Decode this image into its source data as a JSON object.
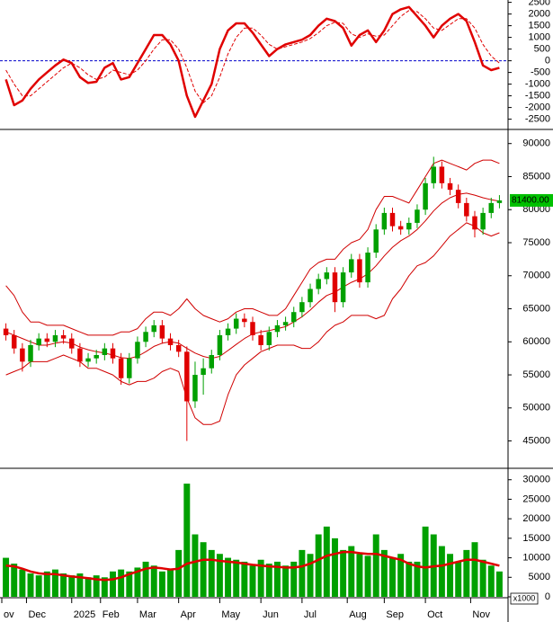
{
  "chart_data": [
    {
      "type": "line",
      "ylim": [
        -2900,
        2600
      ],
      "yticks": [
        2500,
        2000,
        1500,
        1000,
        500,
        0,
        -500,
        -1000,
        -1500,
        -2000,
        -2500
      ],
      "zero_line": 0,
      "zero_line_color": "#0000cc",
      "series": [
        {
          "color": "#e00000",
          "style": "solid",
          "values": [
            -800,
            -1900,
            -1700,
            -1200,
            -800,
            -500,
            -200,
            50,
            -100,
            -700,
            -950,
            -900,
            -300,
            -100,
            -800,
            -700,
            -100,
            500,
            1100,
            1100,
            700,
            0,
            -1500,
            -2400,
            -1700,
            -1000,
            500,
            1300,
            1600,
            1600,
            1200,
            700,
            200,
            500,
            700,
            800,
            900,
            1100,
            1500,
            1800,
            1700,
            1400,
            650,
            1100,
            1300,
            800,
            1300,
            2000,
            2200,
            2300,
            1900,
            1500,
            1000,
            1500,
            1800,
            2000,
            1700,
            800,
            -200,
            -400,
            -300
          ]
        },
        {
          "color": "#e00000",
          "style": "dashed",
          "values": [
            -400,
            -1000,
            -1500,
            -1500,
            -1200,
            -900,
            -600,
            -300,
            -100,
            -300,
            -600,
            -800,
            -700,
            -400,
            -500,
            -600,
            -400,
            0,
            500,
            900,
            900,
            500,
            -300,
            -1300,
            -1800,
            -1500,
            -700,
            300,
            1000,
            1400,
            1400,
            1100,
            700,
            500,
            600,
            700,
            800,
            950,
            1200,
            1500,
            1650,
            1600,
            1150,
            1000,
            1150,
            1050,
            1100,
            1500,
            1900,
            2150,
            2100,
            1800,
            1400,
            1300,
            1550,
            1800,
            1800,
            1400,
            700,
            200,
            -100
          ]
        }
      ]
    },
    {
      "type": "candlestick",
      "ylim": [
        41000,
        92000
      ],
      "yticks": [
        90000,
        85000,
        80000,
        75000,
        70000,
        65000,
        60000,
        55000,
        50000,
        45000
      ],
      "up_color": "#00a000",
      "down_color": "#e00000",
      "band_color": "#d00000",
      "last_price": {
        "value": 81400,
        "label": "81400.00"
      },
      "last_price_color": "#00c000",
      "open": [
        62000,
        61000,
        59000,
        57000,
        59500,
        60500,
        60000,
        61000,
        60500,
        59000,
        57000,
        57500,
        58000,
        59000,
        57500,
        54500,
        57500,
        60000,
        61500,
        62500,
        60500,
        59500,
        58500,
        51000,
        55000,
        56000,
        58000,
        61000,
        62000,
        63500,
        63000,
        61000,
        59500,
        61500,
        62500,
        63000,
        64500,
        66000,
        68000,
        69500,
        70500,
        66000,
        70500,
        72500,
        69000,
        73500,
        77000,
        79500,
        77500,
        77000,
        78000,
        80000,
        84000,
        86500,
        84000,
        83000,
        81000,
        79000,
        77000,
        79500,
        81000
      ],
      "high": [
        62800,
        61800,
        59800,
        60300,
        61300,
        61300,
        61800,
        61800,
        61300,
        59800,
        58300,
        58800,
        59800,
        59800,
        58300,
        58300,
        60800,
        62300,
        63300,
        63300,
        61300,
        60300,
        59300,
        57000,
        57500,
        58800,
        61800,
        62800,
        64300,
        64300,
        63800,
        61800,
        62300,
        63300,
        63800,
        65300,
        66800,
        68800,
        70300,
        71300,
        71300,
        71300,
        73300,
        73300,
        74300,
        77800,
        80300,
        80300,
        78300,
        78800,
        80800,
        84800,
        88000,
        87300,
        84800,
        83800,
        81800,
        79800,
        80300,
        81800,
        82200
      ],
      "low": [
        60200,
        58200,
        55500,
        56200,
        58700,
        59200,
        59200,
        59700,
        58200,
        56200,
        56200,
        56700,
        57200,
        56700,
        53500,
        53700,
        56700,
        59200,
        60700,
        59700,
        58700,
        57700,
        45000,
        50000,
        52000,
        55200,
        57200,
        60200,
        61200,
        62200,
        60200,
        58700,
        58700,
        60700,
        61700,
        62200,
        63700,
        65200,
        67200,
        68700,
        64500,
        65200,
        69700,
        68200,
        68200,
        72700,
        76200,
        76700,
        76200,
        76200,
        77200,
        79200,
        83200,
        83200,
        82200,
        80200,
        78200,
        75800,
        76200,
        78700,
        80200
      ],
      "close": [
        61000,
        59000,
        57000,
        59500,
        60500,
        60000,
        61000,
        60500,
        59000,
        57000,
        57500,
        58000,
        59000,
        57500,
        54500,
        57500,
        60000,
        61500,
        62500,
        60500,
        59500,
        58500,
        51000,
        55000,
        56000,
        58000,
        61000,
        62000,
        63500,
        63000,
        61000,
        59500,
        61500,
        62500,
        63000,
        64500,
        66000,
        68000,
        69500,
        70500,
        66000,
        70500,
        72500,
        69000,
        73500,
        77000,
        79500,
        77500,
        77000,
        78000,
        80000,
        84000,
        86500,
        84000,
        83000,
        81000,
        79000,
        77000,
        79500,
        81000,
        81400
      ],
      "bands": [
        {
          "values": [
            68500,
            67000,
            64500,
            63000,
            63000,
            62500,
            62500,
            62500,
            62000,
            61500,
            61000,
            61000,
            61000,
            61000,
            61500,
            61500,
            62000,
            63500,
            64500,
            64500,
            64000,
            65000,
            66500,
            65000,
            64000,
            63500,
            63000,
            63500,
            64500,
            65000,
            65000,
            64500,
            64000,
            64000,
            65000,
            67000,
            69000,
            71000,
            72000,
            72500,
            72500,
            74000,
            75000,
            75500,
            77000,
            80000,
            82000,
            82000,
            81500,
            81000,
            83000,
            85000,
            87000,
            87500,
            87000,
            86500,
            86000,
            87000,
            87500,
            87500,
            87000
          ]
        },
        {
          "values": [
            61500,
            61000,
            60500,
            60000,
            59500,
            59500,
            59800,
            60000,
            59800,
            59200,
            58800,
            58500,
            58300,
            58000,
            57600,
            57500,
            57800,
            58500,
            59300,
            59800,
            60000,
            59800,
            59000,
            58300,
            57800,
            57500,
            57800,
            58700,
            59600,
            60500,
            61200,
            61500,
            61700,
            62000,
            62300,
            63000,
            63800,
            64800,
            66000,
            67000,
            67500,
            68300,
            69000,
            69500,
            70300,
            71500,
            73000,
            74300,
            75300,
            76000,
            77000,
            78300,
            79800,
            81000,
            81800,
            82300,
            82500,
            82200,
            81800,
            81500,
            81300
          ]
        },
        {
          "values": [
            55000,
            55500,
            56000,
            57000,
            57000,
            57000,
            57500,
            58000,
            57500,
            57000,
            56000,
            56000,
            55500,
            55000,
            54000,
            53500,
            54000,
            54000,
            54500,
            55500,
            56000,
            55500,
            51500,
            48500,
            47500,
            47500,
            48000,
            52000,
            55000,
            56500,
            57500,
            58500,
            59000,
            59500,
            59500,
            59500,
            59000,
            59000,
            60000,
            61500,
            62500,
            63000,
            64000,
            64000,
            64000,
            63500,
            64000,
            66500,
            68000,
            70000,
            71500,
            72000,
            73000,
            74500,
            76000,
            77000,
            78000,
            77500,
            76500,
            76000,
            76500
          ]
        }
      ]
    },
    {
      "type": "bar",
      "ylim": [
        0,
        32700
      ],
      "yticks": [
        30000,
        25000,
        20000,
        15000,
        10000,
        5000,
        0
      ],
      "unit_label": "x1000",
      "color": "#00a000",
      "xlim": [
        -0.5,
        60.5
      ],
      "xticks": [
        {
          "value": -0.5,
          "label": "ov"
        },
        {
          "value": 2.5,
          "label": "Dec"
        },
        {
          "value": 8,
          "label": "2025"
        },
        {
          "value": 11.5,
          "label": "Feb"
        },
        {
          "value": 16,
          "label": "Mar"
        },
        {
          "value": 21,
          "label": "Apr"
        },
        {
          "value": 26,
          "label": "May"
        },
        {
          "value": 31,
          "label": "Jun"
        },
        {
          "value": 36,
          "label": "Jul"
        },
        {
          "value": 41.5,
          "label": "Aug"
        },
        {
          "value": 46,
          "label": "Sep"
        },
        {
          "value": 51,
          "label": "Oct"
        },
        {
          "value": 56.5,
          "label": "Nov"
        }
      ],
      "values": [
        10000,
        8500,
        7000,
        6000,
        5500,
        6500,
        7000,
        6000,
        5500,
        6000,
        5000,
        5500,
        5000,
        6500,
        7000,
        6500,
        7500,
        9000,
        8000,
        6500,
        7000,
        12000,
        29000,
        16000,
        14000,
        12000,
        11000,
        10000,
        9500,
        9000,
        8000,
        9500,
        8500,
        9000,
        8000,
        9000,
        12000,
        11000,
        16000,
        18000,
        15000,
        12000,
        13000,
        11000,
        10500,
        16000,
        12000,
        10000,
        11000,
        9000,
        9000,
        18000,
        16000,
        13000,
        11000,
        9000,
        12000,
        14000,
        9500,
        8000,
        6500
      ],
      "ma": {
        "color": "#e00000",
        "values": [
          8000,
          7800,
          7200,
          6500,
          6000,
          5800,
          5800,
          5500,
          5200,
          5000,
          4800,
          4500,
          4300,
          4500,
          5000,
          5800,
          6500,
          7200,
          7500,
          7300,
          7000,
          7200,
          8500,
          9000,
          9500,
          9500,
          9200,
          9000,
          8800,
          8500,
          8200,
          8000,
          7800,
          7700,
          7500,
          7500,
          7800,
          8500,
          9500,
          10500,
          11000,
          11500,
          11500,
          11200,
          11000,
          11000,
          10500,
          10000,
          9500,
          8500,
          7800,
          7500,
          7800,
          8000,
          8500,
          9000,
          9500,
          9500,
          9000,
          8500,
          8000
        ]
      }
    }
  ]
}
